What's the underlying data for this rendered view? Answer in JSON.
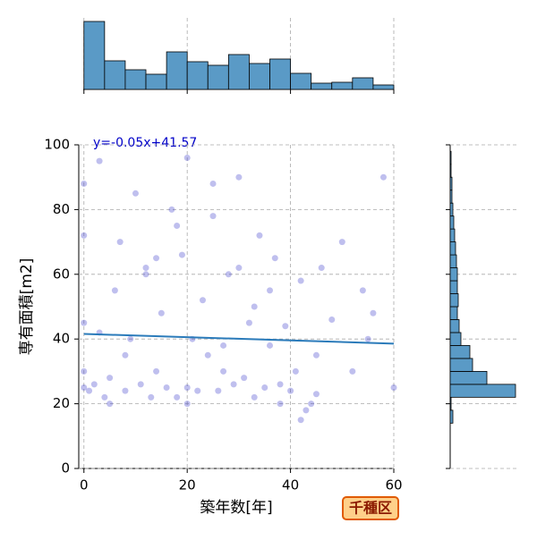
{
  "chart_data": {
    "type": "joint",
    "x_label": "築年数[年]",
    "y_label": "専有面積[m2]",
    "annotation": "y=-0.05x+41.57",
    "badge": "千種区",
    "xlim": [
      -1,
      60
    ],
    "xticks": [
      0,
      20,
      40,
      60
    ],
    "ylim": [
      0,
      100
    ],
    "yticks": [
      0,
      20,
      40,
      60,
      80,
      100
    ],
    "grid": true,
    "scatter": {
      "color": "#2a2ac8",
      "x": [
        0,
        0,
        0,
        0,
        0,
        1,
        2,
        3,
        4,
        5,
        6,
        7,
        8,
        9,
        10,
        11,
        12,
        13,
        14,
        15,
        16,
        17,
        18,
        19,
        20,
        20,
        21,
        22,
        23,
        24,
        25,
        26,
        27,
        28,
        29,
        30,
        31,
        32,
        33,
        34,
        35,
        36,
        37,
        38,
        39,
        40,
        41,
        42,
        43,
        44,
        45,
        46,
        48,
        50,
        52,
        54,
        56,
        58,
        60,
        3,
        8,
        14,
        20,
        27,
        33,
        38,
        45,
        55,
        5,
        12,
        18,
        25,
        30,
        36,
        42
      ],
      "y": [
        25,
        30,
        45,
        72,
        88,
        24,
        26,
        95,
        22,
        28,
        55,
        70,
        24,
        40,
        85,
        26,
        60,
        22,
        30,
        48,
        25,
        80,
        22,
        66,
        25,
        96,
        40,
        24,
        52,
        35,
        78,
        24,
        30,
        60,
        26,
        90,
        28,
        45,
        22,
        72,
        25,
        38,
        65,
        20,
        44,
        24,
        30,
        58,
        18,
        20,
        35,
        62,
        46,
        70,
        30,
        55,
        48,
        90,
        25,
        42,
        35,
        65,
        20,
        38,
        50,
        26,
        23,
        40,
        20,
        62,
        75,
        88,
        62,
        55,
        15
      ]
    },
    "fit_line": {
      "color": "#2b7bba",
      "x": [
        0,
        60
      ],
      "y": [
        41.57,
        38.57
      ]
    },
    "top_histogram": {
      "color": "#5a9ac6",
      "bins": [
        0,
        4,
        8,
        12,
        16,
        20,
        24,
        28,
        32,
        36,
        40,
        44,
        48,
        52,
        56,
        60
      ],
      "counts": [
        76,
        32,
        22,
        17,
        42,
        31,
        27,
        39,
        29,
        34,
        18,
        7,
        8,
        13,
        5
      ],
      "ylim": [
        0,
        76
      ]
    },
    "right_histogram": {
      "color": "#5a9ac6",
      "bins": [
        14,
        18,
        22,
        26,
        30,
        34,
        38,
        42,
        46,
        50,
        54,
        58,
        62,
        66,
        70,
        74,
        78,
        82,
        86,
        90,
        94,
        98
      ],
      "counts": [
        3,
        1,
        73,
        41,
        25,
        22,
        12,
        10,
        8,
        9,
        8,
        8,
        7,
        6,
        5,
        4,
        3,
        2,
        2,
        1,
        1
      ],
      "xlim": [
        0,
        73
      ]
    }
  }
}
